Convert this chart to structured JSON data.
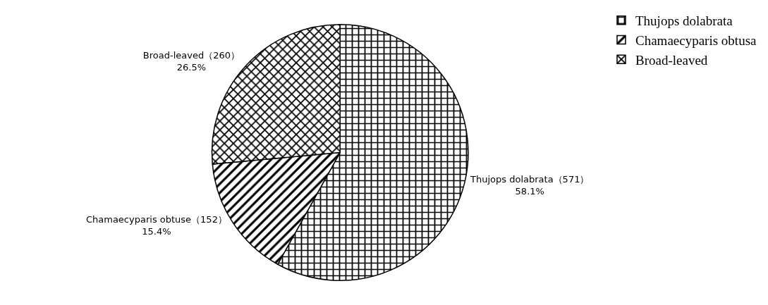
{
  "chart_data": {
    "type": "pie",
    "categories": [
      "Thujops dolabrata",
      "Chamaecyparis obtusa",
      "Broad-leaved"
    ],
    "values": [
      571,
      152,
      260
    ],
    "colors": [
      "#000000",
      "#000000",
      "#000000"
    ],
    "value_labels": [
      "Thujops dolabrata（571）\n58.1%",
      "Chamaecyparis obtuse（152）\n15.4%",
      "Broad-leaved（260）\n26.5%"
    ],
    "legend": "top right"
  }
}
